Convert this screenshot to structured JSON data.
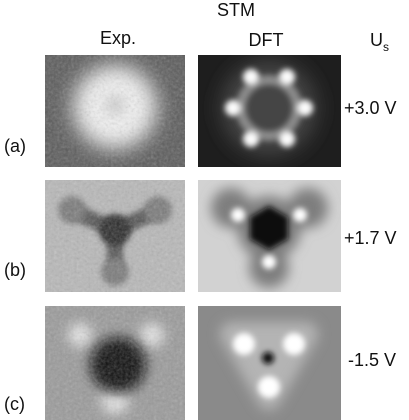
{
  "header": {
    "title": "STM",
    "columns": [
      "Exp.",
      "DFT"
    ],
    "bias": {
      "text": "U",
      "subscript": "s"
    }
  },
  "rows": [
    {
      "label": "(a)",
      "voltage": "+3.0 V"
    },
    {
      "label": "(b)",
      "voltage": "+1.7 V"
    },
    {
      "label": "(c)",
      "voltage": "-1.5 V"
    }
  ]
}
